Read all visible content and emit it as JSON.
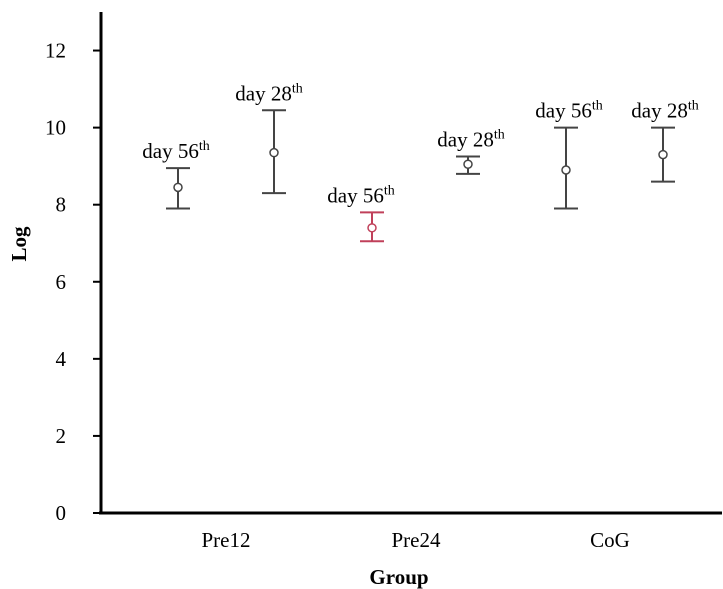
{
  "chart_data": {
    "type": "scatter",
    "subtype": "error-bar",
    "xlabel": "Group",
    "ylabel": "Log",
    "ylim": [
      0,
      13
    ],
    "y_ticks": [
      0,
      2,
      4,
      6,
      8,
      10,
      12
    ],
    "categories": [
      "Pre12",
      "Pre24",
      "CoG"
    ],
    "grid": false,
    "legend": "none",
    "colors": {
      "default": "#444444",
      "highlight": "#c0405a"
    },
    "points": [
      {
        "group": "Pre12",
        "label": "day 56",
        "sup": "th",
        "mean": 8.45,
        "low": 7.9,
        "high": 8.95,
        "highlight": false
      },
      {
        "group": "Pre12",
        "label": "day 28",
        "sup": "th",
        "mean": 9.35,
        "low": 8.3,
        "high": 10.45,
        "highlight": false
      },
      {
        "group": "Pre24",
        "label": "day 56",
        "sup": "th",
        "mean": 7.4,
        "low": 7.05,
        "high": 7.8,
        "highlight": true
      },
      {
        "group": "Pre24",
        "label": "day 28",
        "sup": "th",
        "mean": 9.05,
        "low": 8.8,
        "high": 9.25,
        "highlight": false
      },
      {
        "group": "CoG",
        "label": "day 56",
        "sup": "th",
        "mean": 8.9,
        "low": 7.9,
        "high": 10.0,
        "highlight": false
      },
      {
        "group": "CoG",
        "label": "day 28",
        "sup": "th",
        "mean": 9.3,
        "low": 8.6,
        "high": 10.0,
        "highlight": false
      }
    ]
  }
}
